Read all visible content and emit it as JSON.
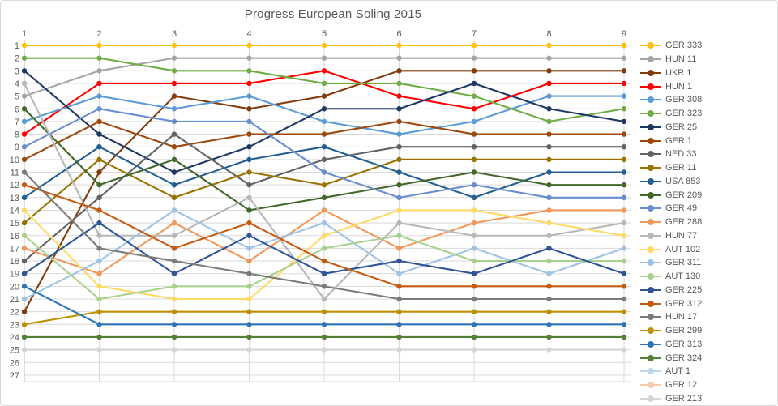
{
  "chart_data": {
    "type": "line",
    "title": "Progress European Soling 2015",
    "xlabel": "",
    "ylabel": "",
    "x": [
      1,
      2,
      3,
      4,
      5,
      6,
      7,
      8,
      9
    ],
    "x_tick_labels": [
      "1",
      "2",
      "3",
      "4",
      "5",
      "6",
      "7",
      "8",
      "9"
    ],
    "y_tick_labels": [
      "1",
      "2",
      "3",
      "4",
      "5",
      "6",
      "7",
      "8",
      "9",
      "10",
      "11",
      "12",
      "13",
      "14",
      "15",
      "16",
      "17",
      "18",
      "19",
      "20",
      "21",
      "22",
      "23",
      "24",
      "25",
      "26",
      "27"
    ],
    "y_axis": {
      "min": 1,
      "max": 27,
      "inverted": true,
      "meaning": "overall position (rank)"
    },
    "x_axis_position": "top",
    "legend_position": "right",
    "grid": true,
    "grid_color": "#d9d9d9",
    "axis_line_color": "#bfbfbf",
    "axis_text_color": "#595959",
    "series": [
      {
        "name": "GER 333",
        "color": "#FFC000",
        "positions": [
          1,
          1,
          1,
          1,
          1,
          1,
          1,
          1,
          1
        ]
      },
      {
        "name": "HUN 11",
        "color": "#A5A5A5",
        "positions": [
          5,
          3,
          2,
          2,
          2,
          2,
          2,
          2,
          2
        ]
      },
      {
        "name": "UKR 1",
        "color": "#843C0C",
        "positions": [
          22,
          11,
          5,
          6,
          5,
          3,
          3,
          3,
          3
        ]
      },
      {
        "name": "HUN 1",
        "color": "#FF0000",
        "positions": [
          8,
          4,
          4,
          4,
          3,
          5,
          6,
          4,
          4
        ]
      },
      {
        "name": "GER 308",
        "color": "#5B9BD5",
        "positions": [
          7,
          5,
          6,
          5,
          7,
          8,
          7,
          5,
          5
        ]
      },
      {
        "name": "GER 323",
        "color": "#70AD47",
        "positions": [
          2,
          2,
          3,
          3,
          4,
          4,
          5,
          7,
          6
        ]
      },
      {
        "name": "GER 25",
        "color": "#1F3864",
        "positions": [
          3,
          8,
          11,
          9,
          6,
          6,
          4,
          6,
          7
        ]
      },
      {
        "name": "GER 1",
        "color": "#9E480E",
        "positions": [
          10,
          7,
          9,
          8,
          8,
          7,
          8,
          8,
          8
        ]
      },
      {
        "name": "NED 33",
        "color": "#636363",
        "positions": [
          18,
          13,
          8,
          12,
          10,
          9,
          9,
          9,
          9
        ]
      },
      {
        "name": "GER 11",
        "color": "#997300",
        "positions": [
          15,
          10,
          13,
          11,
          12,
          10,
          10,
          10,
          10
        ]
      },
      {
        "name": "USA 853",
        "color": "#255E91",
        "positions": [
          13,
          9,
          12,
          10,
          9,
          11,
          13,
          11,
          11
        ]
      },
      {
        "name": "GER 209",
        "color": "#43682B",
        "positions": [
          6,
          12,
          10,
          14,
          13,
          12,
          11,
          12,
          12
        ]
      },
      {
        "name": "GER 49",
        "color": "#698ED0",
        "positions": [
          9,
          6,
          7,
          7,
          11,
          13,
          12,
          13,
          13
        ]
      },
      {
        "name": "GER 288",
        "color": "#F1975A",
        "positions": [
          17,
          19,
          15,
          18,
          14,
          17,
          15,
          14,
          14
        ]
      },
      {
        "name": "HUN 77",
        "color": "#B7B7B7",
        "positions": [
          4,
          16,
          16,
          13,
          21,
          15,
          16,
          16,
          15
        ]
      },
      {
        "name": "AUT 102",
        "color": "#FFD966",
        "positions": [
          14,
          20,
          21,
          21,
          16,
          14,
          14,
          15,
          16
        ]
      },
      {
        "name": "GER 311",
        "color": "#9DC3E6",
        "positions": [
          21,
          18,
          14,
          17,
          15,
          19,
          17,
          19,
          17
        ]
      },
      {
        "name": "AUT 130",
        "color": "#A9D18E",
        "positions": [
          16,
          21,
          20,
          20,
          17,
          16,
          18,
          18,
          18
        ]
      },
      {
        "name": "GER 225",
        "color": "#2F5597",
        "positions": [
          19,
          15,
          19,
          16,
          19,
          18,
          19,
          17,
          19
        ]
      },
      {
        "name": "GER 312",
        "color": "#C55A11",
        "positions": [
          12,
          14,
          17,
          15,
          18,
          20,
          20,
          20,
          20
        ]
      },
      {
        "name": "HUN 17",
        "color": "#7B7B7B",
        "positions": [
          11,
          17,
          18,
          19,
          20,
          21,
          21,
          21,
          21
        ]
      },
      {
        "name": "GER 299",
        "color": "#BF8F00",
        "positions": [
          23,
          22,
          22,
          22,
          22,
          22,
          22,
          22,
          22
        ]
      },
      {
        "name": "GER 313",
        "color": "#2E75B6",
        "positions": [
          20,
          23,
          23,
          23,
          23,
          23,
          23,
          23,
          23
        ]
      },
      {
        "name": "GER 324",
        "color": "#538135",
        "positions": [
          24,
          24,
          24,
          24,
          24,
          24,
          24,
          24,
          24
        ]
      },
      {
        "name": "AUT 1",
        "color": "#BDD7EE",
        "positions": null
      },
      {
        "name": "GER 12",
        "color": "#F8CBAD",
        "positions": null
      },
      {
        "name": "GER 213",
        "color": "#D6D6D6",
        "positions": [
          25,
          25,
          25,
          25,
          25,
          25,
          25,
          25,
          25
        ]
      }
    ]
  }
}
